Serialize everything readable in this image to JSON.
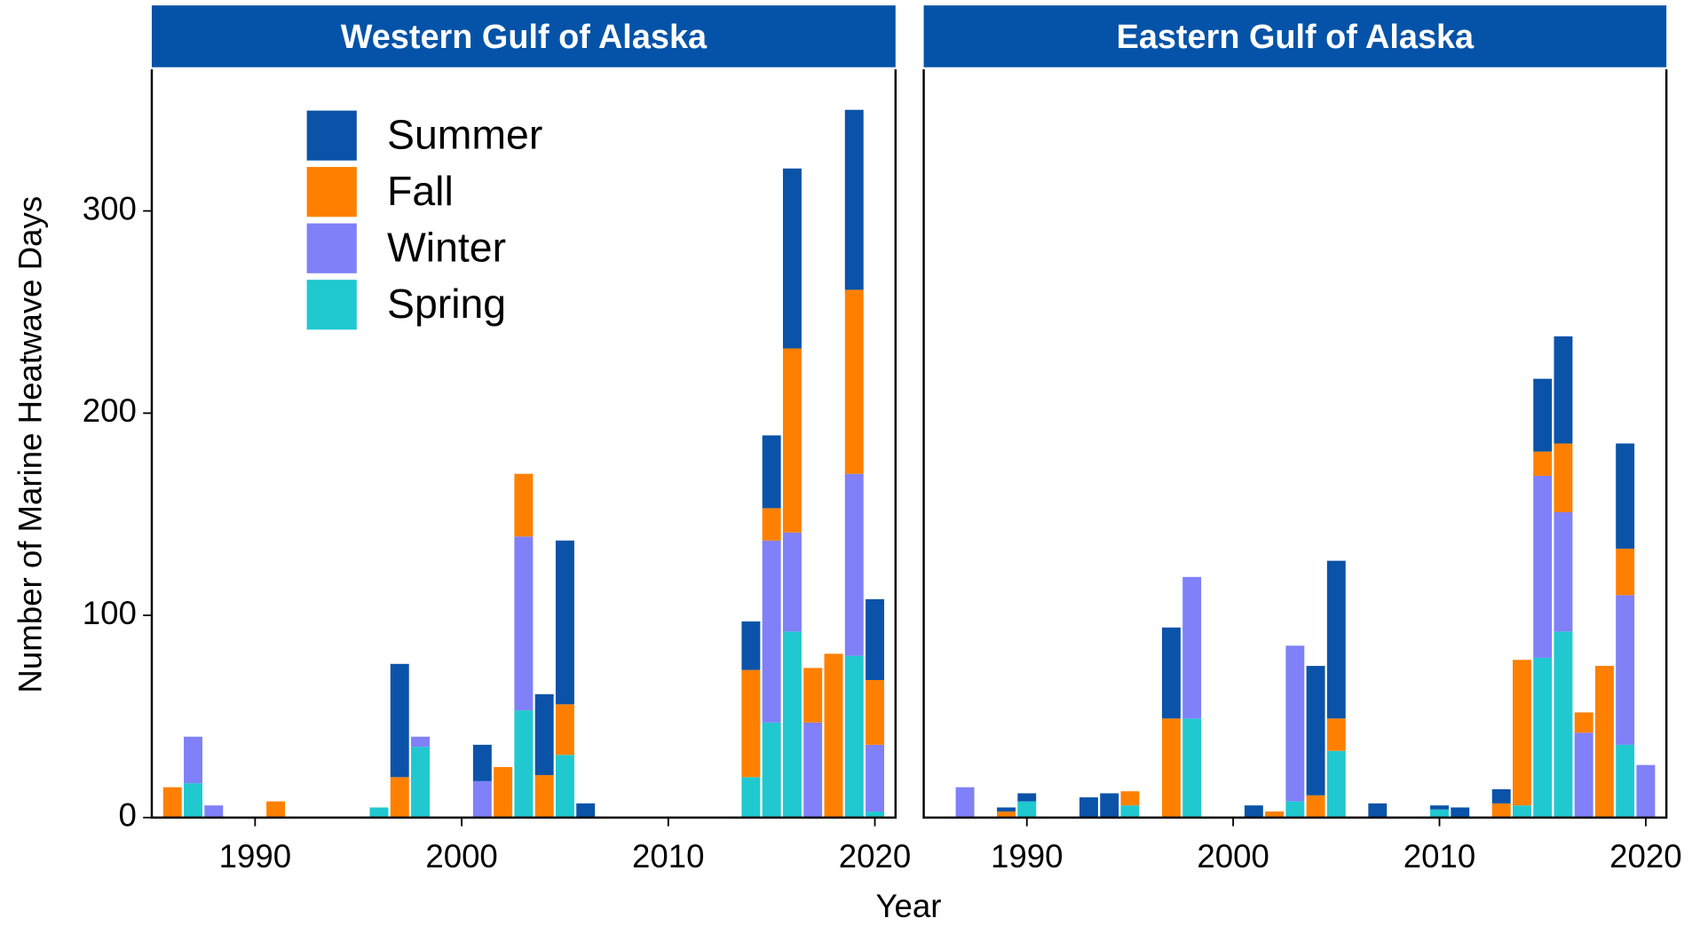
{
  "chart_data": {
    "type": "bar",
    "stacked": true,
    "y_label": "Number of Marine Heatwave Days",
    "x_label": "Year",
    "ylim": [
      0,
      370
    ],
    "yticks": [
      0,
      100,
      200,
      300
    ],
    "xlim": [
      1985,
      2021
    ],
    "xticks": [
      1990,
      2000,
      2010,
      2020
    ],
    "legend": {
      "position": "top-left",
      "items": [
        {
          "name": "Summer",
          "color": "#0a53a8"
        },
        {
          "name": "Fall",
          "color": "#ff8000"
        },
        {
          "name": "Winter",
          "color": "#8080f8"
        },
        {
          "name": "Spring",
          "color": "#20c8d0"
        }
      ]
    },
    "panels": [
      {
        "title": "Western Gulf of Alaska",
        "x": [
          1986,
          1987,
          1988,
          1991,
          1996,
          1997,
          1998,
          2001,
          2002,
          2003,
          2004,
          2005,
          2006,
          2014,
          2015,
          2016,
          2017,
          2018,
          2019,
          2020
        ],
        "series": [
          {
            "values": [
              0,
              0,
              0,
              0,
              0,
              56,
              0,
              18,
              0,
              0,
              40,
              81,
              7,
              24,
              36,
              89,
              0,
              0,
              89,
              40
            ]
          },
          {
            "values": [
              15,
              0,
              0,
              8,
              0,
              20,
              0,
              0,
              25,
              31,
              21,
              25,
              0,
              53,
              16,
              91,
              27,
              81,
              91,
              32
            ]
          },
          {
            "values": [
              0,
              23,
              6,
              0,
              0,
              0,
              5,
              18,
              0,
              86,
              0,
              0,
              0,
              0,
              90,
              49,
              47,
              0,
              90,
              33
            ]
          },
          {
            "values": [
              0,
              17,
              0,
              0,
              5,
              0,
              35,
              0,
              0,
              53,
              0,
              31,
              0,
              20,
              47,
              92,
              0,
              0,
              80,
              3
            ]
          }
        ]
      },
      {
        "title": "Eastern Gulf of Alaska",
        "x": [
          1987,
          1989,
          1990,
          1993,
          1994,
          1995,
          1997,
          1998,
          2001,
          2002,
          2003,
          2004,
          2005,
          2007,
          2010,
          2011,
          2013,
          2014,
          2015,
          2016,
          2017,
          2018,
          2019,
          2020
        ],
        "series": [
          {
            "values": [
              0,
              2,
              4,
              10,
              12,
              0,
              45,
              0,
              6,
              0,
              0,
              64,
              78,
              7,
              2,
              5,
              7,
              0,
              36,
              53,
              0,
              0,
              52,
              0
            ]
          },
          {
            "values": [
              0,
              3,
              0,
              0,
              0,
              7,
              49,
              0,
              0,
              3,
              0,
              11,
              16,
              0,
              0,
              0,
              7,
              72,
              12,
              34,
              10,
              75,
              23,
              0
            ]
          },
          {
            "values": [
              15,
              0,
              0,
              0,
              0,
              0,
              0,
              70,
              0,
              0,
              77,
              0,
              0,
              0,
              0,
              0,
              0,
              0,
              90,
              59,
              42,
              0,
              74,
              26
            ]
          },
          {
            "values": [
              0,
              0,
              8,
              0,
              0,
              6,
              0,
              49,
              0,
              0,
              8,
              0,
              33,
              0,
              4,
              0,
              0,
              6,
              79,
              92,
              0,
              0,
              36,
              0
            ]
          }
        ]
      }
    ]
  }
}
